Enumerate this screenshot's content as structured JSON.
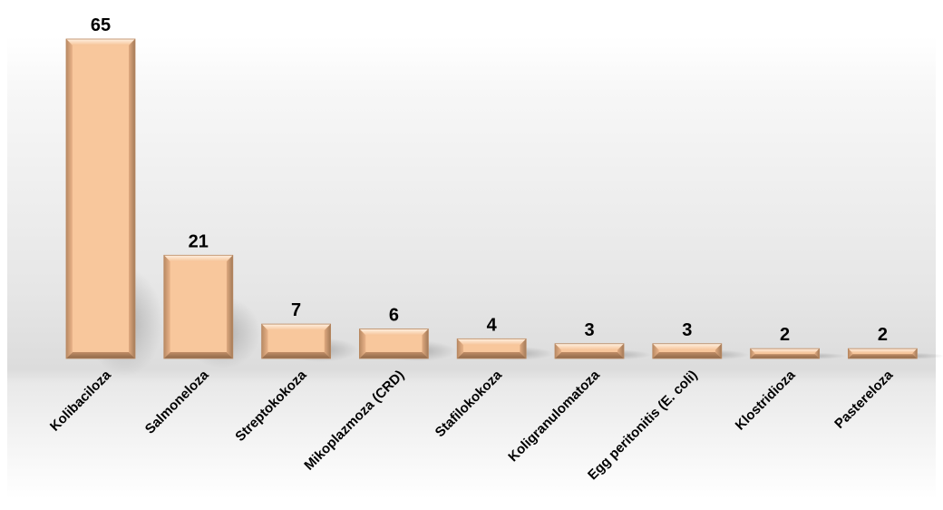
{
  "chart_data": {
    "type": "bar",
    "categories": [
      "Kolibaciloza",
      "Salmoneloza",
      "Streptokokoza",
      "Mikoplazmoza (CRD)",
      "Stafilokokoza",
      "Koligranulomatoza",
      "Egg peritonitis (E. coli)",
      "Klostridioza",
      "Pastereloza"
    ],
    "values": [
      65,
      21,
      7,
      6,
      4,
      3,
      3,
      2,
      2
    ],
    "title": "",
    "xlabel": "",
    "ylabel": "",
    "ylim": [
      0,
      65
    ],
    "grid": false,
    "legend": "none",
    "colors": {
      "bar_fill": "#f8c79c",
      "bar_highlight": "#fde4cb",
      "bar_shadow": "#a9815f",
      "floor_shadow": "#9a9a9a"
    }
  }
}
